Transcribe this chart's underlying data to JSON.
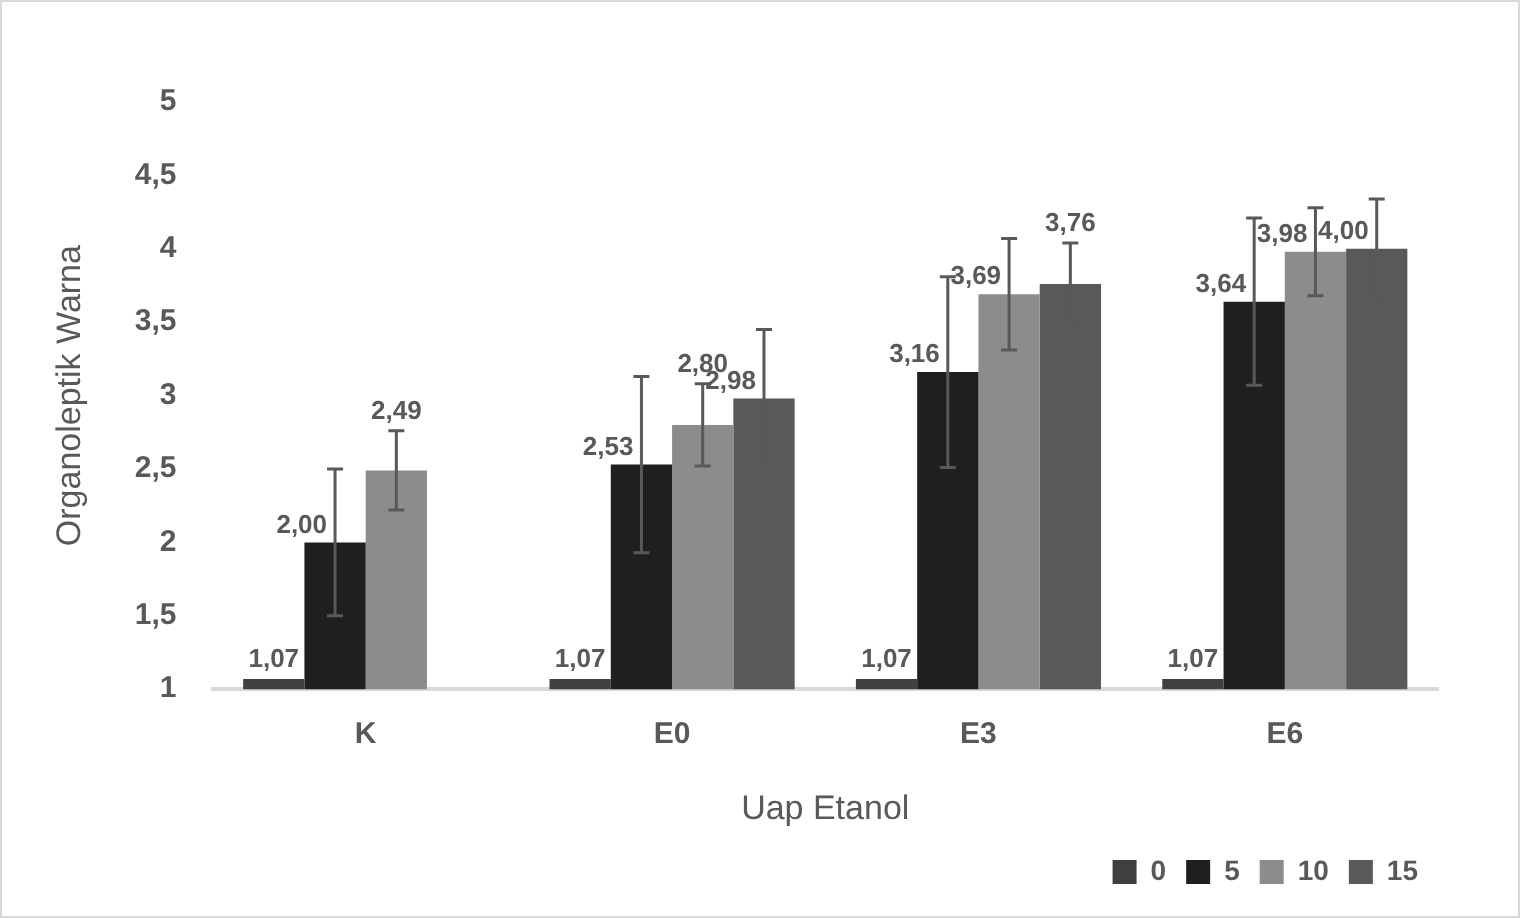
{
  "chart_data": {
    "type": "bar",
    "xlabel": "Uap Etanol",
    "ylabel": "Organoleptik Warna",
    "categories": [
      "K",
      "E0",
      "E3",
      "E6"
    ],
    "series": [
      {
        "name": "0",
        "color": "#404040",
        "values": [
          1.07,
          1.07,
          1.07,
          1.07
        ],
        "value_labels": [
          "1,07",
          "1,07",
          "1,07",
          "1,07"
        ]
      },
      {
        "name": "5",
        "color": "#1f1f1f",
        "values": [
          2.0,
          2.53,
          3.16,
          3.64
        ],
        "errors": [
          0.5,
          0.6,
          0.65,
          0.57
        ],
        "value_labels": [
          "2,00",
          "2,53",
          "3,16",
          "3,64"
        ]
      },
      {
        "name": "10",
        "color": "#8c8c8c",
        "values": [
          2.49,
          2.8,
          3.69,
          3.98
        ],
        "errors": [
          0.27,
          0.28,
          0.38,
          0.3
        ],
        "value_labels": [
          "2,49",
          "2,80",
          "3,69",
          "3,98"
        ]
      },
      {
        "name": "15",
        "color": "#595959",
        "values": [
          null,
          2.98,
          3.76,
          4.0
        ],
        "errors": [
          null,
          0.47,
          0.28,
          0.34
        ],
        "value_labels": [
          null,
          "2,98",
          "3,76",
          "4,00"
        ]
      }
    ],
    "ylim": [
      1,
      5
    ],
    "yticks": [
      1,
      {
        "value": 1.5,
        "label": "1,5"
      },
      2,
      {
        "value": 2.5,
        "label": "2,5"
      },
      3,
      {
        "value": 3.5,
        "label": "3,5"
      },
      4,
      {
        "value": 4.5,
        "label": "4,5"
      },
      5
    ],
    "grid": false,
    "legend": "bottom right"
  }
}
